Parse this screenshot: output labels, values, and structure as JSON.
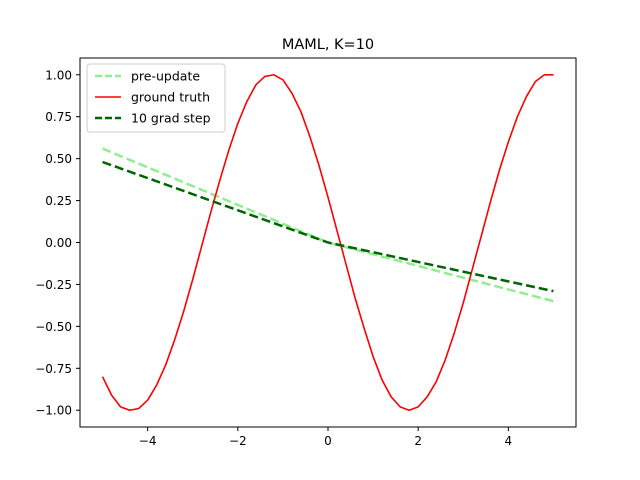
{
  "chart_data": {
    "type": "line",
    "title": "MAML, K=10",
    "xlabel": "",
    "ylabel": "",
    "xlim": [
      -5.5,
      5.5
    ],
    "ylim": [
      -1.1,
      1.1
    ],
    "xticks": [
      -4,
      -2,
      0,
      2,
      4
    ],
    "yticks": [
      -1.0,
      -0.75,
      -0.5,
      -0.25,
      0.0,
      0.25,
      0.5,
      0.75,
      1.0
    ],
    "xtick_labels": [
      "−4",
      "−2",
      "0",
      "2",
      "4"
    ],
    "ytick_labels": [
      "−1.00",
      "−0.75",
      "−0.50",
      "−0.25",
      "0.00",
      "0.25",
      "0.50",
      "0.75",
      "1.00"
    ],
    "grid": false,
    "legend_position": "upper-left",
    "series": [
      {
        "name": "pre-update",
        "color": "#90ee90",
        "style": "dashed",
        "x": [
          -5.0,
          0.0,
          5.0
        ],
        "y": [
          0.56,
          0.0,
          -0.35
        ]
      },
      {
        "name": "ground truth",
        "color": "#ff0000",
        "style": "solid",
        "x": [
          -5.0,
          -4.8,
          -4.6,
          -4.4,
          -4.2,
          -4.0,
          -3.8,
          -3.6,
          -3.4,
          -3.2,
          -3.0,
          -2.8,
          -2.6,
          -2.4,
          -2.2,
          -2.0,
          -1.8,
          -1.6,
          -1.4,
          -1.2,
          -1.0,
          -0.8,
          -0.6,
          -0.4,
          -0.2,
          0.0,
          0.2,
          0.4,
          0.6,
          0.8,
          1.0,
          1.2,
          1.4,
          1.6,
          1.8,
          2.0,
          2.2,
          2.4,
          2.6,
          2.8,
          3.0,
          3.2,
          3.4,
          3.6,
          3.8,
          4.0,
          4.2,
          4.4,
          4.6,
          4.8,
          5.0
        ],
        "y": [
          -0.8,
          -0.91,
          -0.98,
          -1.0,
          -0.99,
          -0.94,
          -0.85,
          -0.73,
          -0.58,
          -0.41,
          -0.22,
          -0.02,
          0.18,
          0.37,
          0.55,
          0.71,
          0.84,
          0.94,
          0.99,
          1.0,
          0.97,
          0.89,
          0.78,
          0.63,
          0.46,
          0.27,
          0.07,
          -0.13,
          -0.33,
          -0.51,
          -0.68,
          -0.82,
          -0.92,
          -0.98,
          -1.0,
          -0.98,
          -0.92,
          -0.83,
          -0.7,
          -0.54,
          -0.36,
          -0.16,
          0.04,
          0.24,
          0.43,
          0.6,
          0.75,
          0.87,
          0.96,
          1.0,
          1.0
        ]
      },
      {
        "name": "10 grad step",
        "color": "#006400",
        "style": "dashed",
        "x": [
          -5.0,
          0.0,
          5.0
        ],
        "y": [
          0.48,
          0.0,
          -0.29
        ]
      }
    ]
  }
}
